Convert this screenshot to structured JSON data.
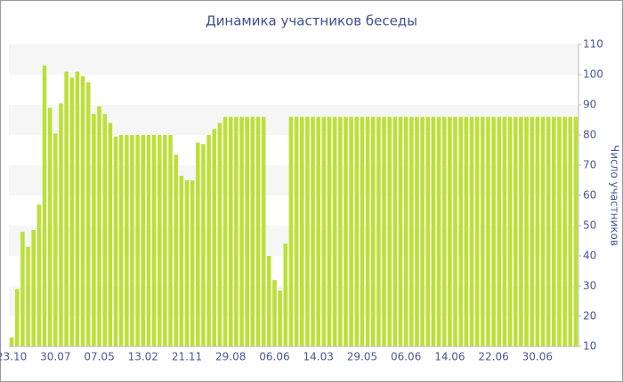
{
  "chart_data": {
    "type": "bar",
    "title": "Динамика участников беседы",
    "y_axis_label": "Число участников",
    "categories": [
      "23.10",
      null,
      null,
      null,
      null,
      null,
      null,
      null,
      "30.07",
      null,
      null,
      null,
      null,
      null,
      null,
      null,
      "07.05",
      null,
      null,
      null,
      null,
      null,
      null,
      null,
      "13.02",
      null,
      null,
      null,
      null,
      null,
      null,
      null,
      "21.11",
      null,
      null,
      null,
      null,
      null,
      null,
      null,
      "29.08",
      null,
      null,
      null,
      null,
      null,
      null,
      null,
      "06.06",
      null,
      null,
      null,
      null,
      null,
      null,
      null,
      "14.03",
      null,
      null,
      null,
      null,
      null,
      null,
      null,
      "29.05",
      null,
      null,
      null,
      null,
      null,
      null,
      null,
      "06.06",
      null,
      null,
      null,
      null,
      null,
      null,
      null,
      "14.06",
      null,
      null,
      null,
      null,
      null,
      null,
      null,
      "22.06",
      null,
      null,
      null,
      null,
      null,
      null,
      null,
      "30.06",
      null,
      null,
      null,
      null,
      null,
      null,
      null
    ],
    "values": [
      13,
      29,
      48,
      43,
      48.5,
      57,
      103,
      89,
      80.5,
      90.5,
      101,
      99,
      101,
      99.5,
      97.5,
      87,
      89.5,
      87,
      84,
      79.5,
      80,
      80,
      80,
      80,
      80,
      80,
      80,
      80,
      80,
      80,
      73.5,
      66.5,
      65,
      65,
      77.5,
      77,
      80,
      82,
      84,
      86,
      86,
      86,
      86,
      86,
      86,
      86,
      86,
      40,
      32,
      28.5,
      44,
      86,
      86,
      86,
      86,
      86,
      86,
      86,
      86,
      86,
      86,
      86,
      86,
      86,
      86,
      86,
      86,
      86,
      86,
      86,
      86,
      86,
      86,
      86,
      86,
      86,
      86,
      86,
      86,
      86,
      86,
      86,
      86,
      86,
      86,
      86,
      86,
      86,
      86,
      86,
      86,
      86,
      86,
      86,
      86,
      86,
      86,
      86,
      86,
      86,
      86,
      86,
      86,
      86
    ],
    "color": "#bce038",
    "ylim": [
      10,
      110
    ],
    "yticks": [
      10,
      20,
      30,
      40,
      50,
      60,
      70,
      80,
      90,
      100,
      110
    ],
    "grid": "bands",
    "y_axis_side": "right"
  }
}
